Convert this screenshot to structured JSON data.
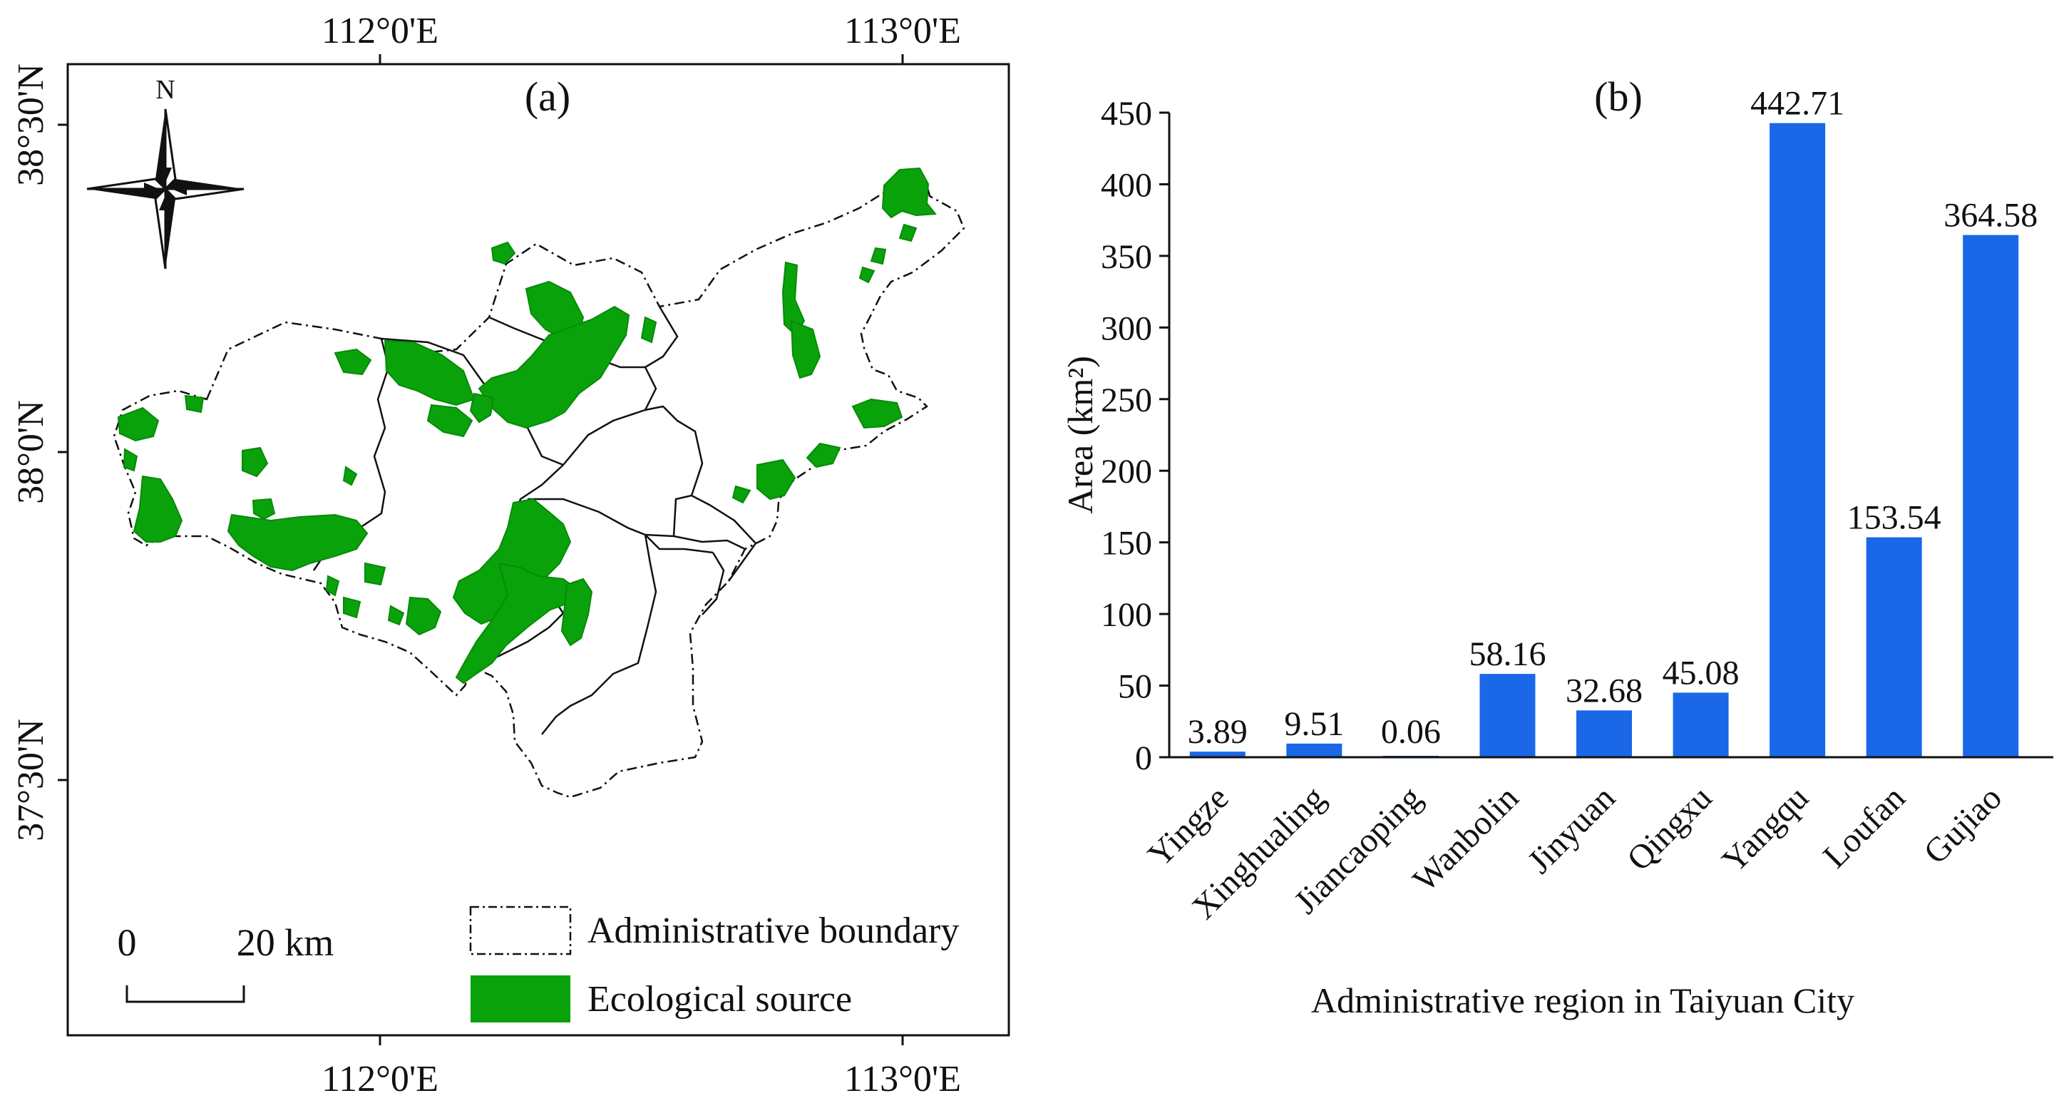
{
  "map_panel": {
    "panel_label": "(a)",
    "north_label": "N",
    "lon_labels": [
      "112°0'E",
      "113°0'E"
    ],
    "lat_labels": [
      "38°30'N",
      "38°0'N",
      "37°30'N"
    ],
    "scale_bar": {
      "start": "0",
      "end": "20 km"
    },
    "legend": [
      {
        "label": "Administrative boundary",
        "symbol": "dash-dot-outline"
      },
      {
        "label": "Ecological source",
        "symbol": "green-fill"
      }
    ],
    "colors": {
      "eco_source": "#09a20b",
      "boundary": "#111111"
    }
  },
  "chart_data": {
    "type": "bar",
    "panel_label": "(b)",
    "title": "",
    "xlabel": "Administrative region in Taiyuan City",
    "ylabel": "Area (km²)",
    "ylim": [
      0,
      450
    ],
    "yticks": [
      0,
      50,
      100,
      150,
      200,
      250,
      300,
      350,
      400,
      450
    ],
    "categories": [
      "Yingze",
      "Xinghualing",
      "Jiancaoping",
      "Wanbolin",
      "Jinyuan",
      "Qingxu",
      "Yangqu",
      "Loufan",
      "Gujiao"
    ],
    "values": [
      3.89,
      9.51,
      0.06,
      58.16,
      32.68,
      45.08,
      442.71,
      153.54,
      364.58
    ],
    "data_labels": [
      "3.89",
      "9.51",
      "0.06",
      "58.16",
      "32.68",
      "45.08",
      "442.71",
      "153.54",
      "364.58"
    ],
    "bar_color": "#1a67e8"
  }
}
